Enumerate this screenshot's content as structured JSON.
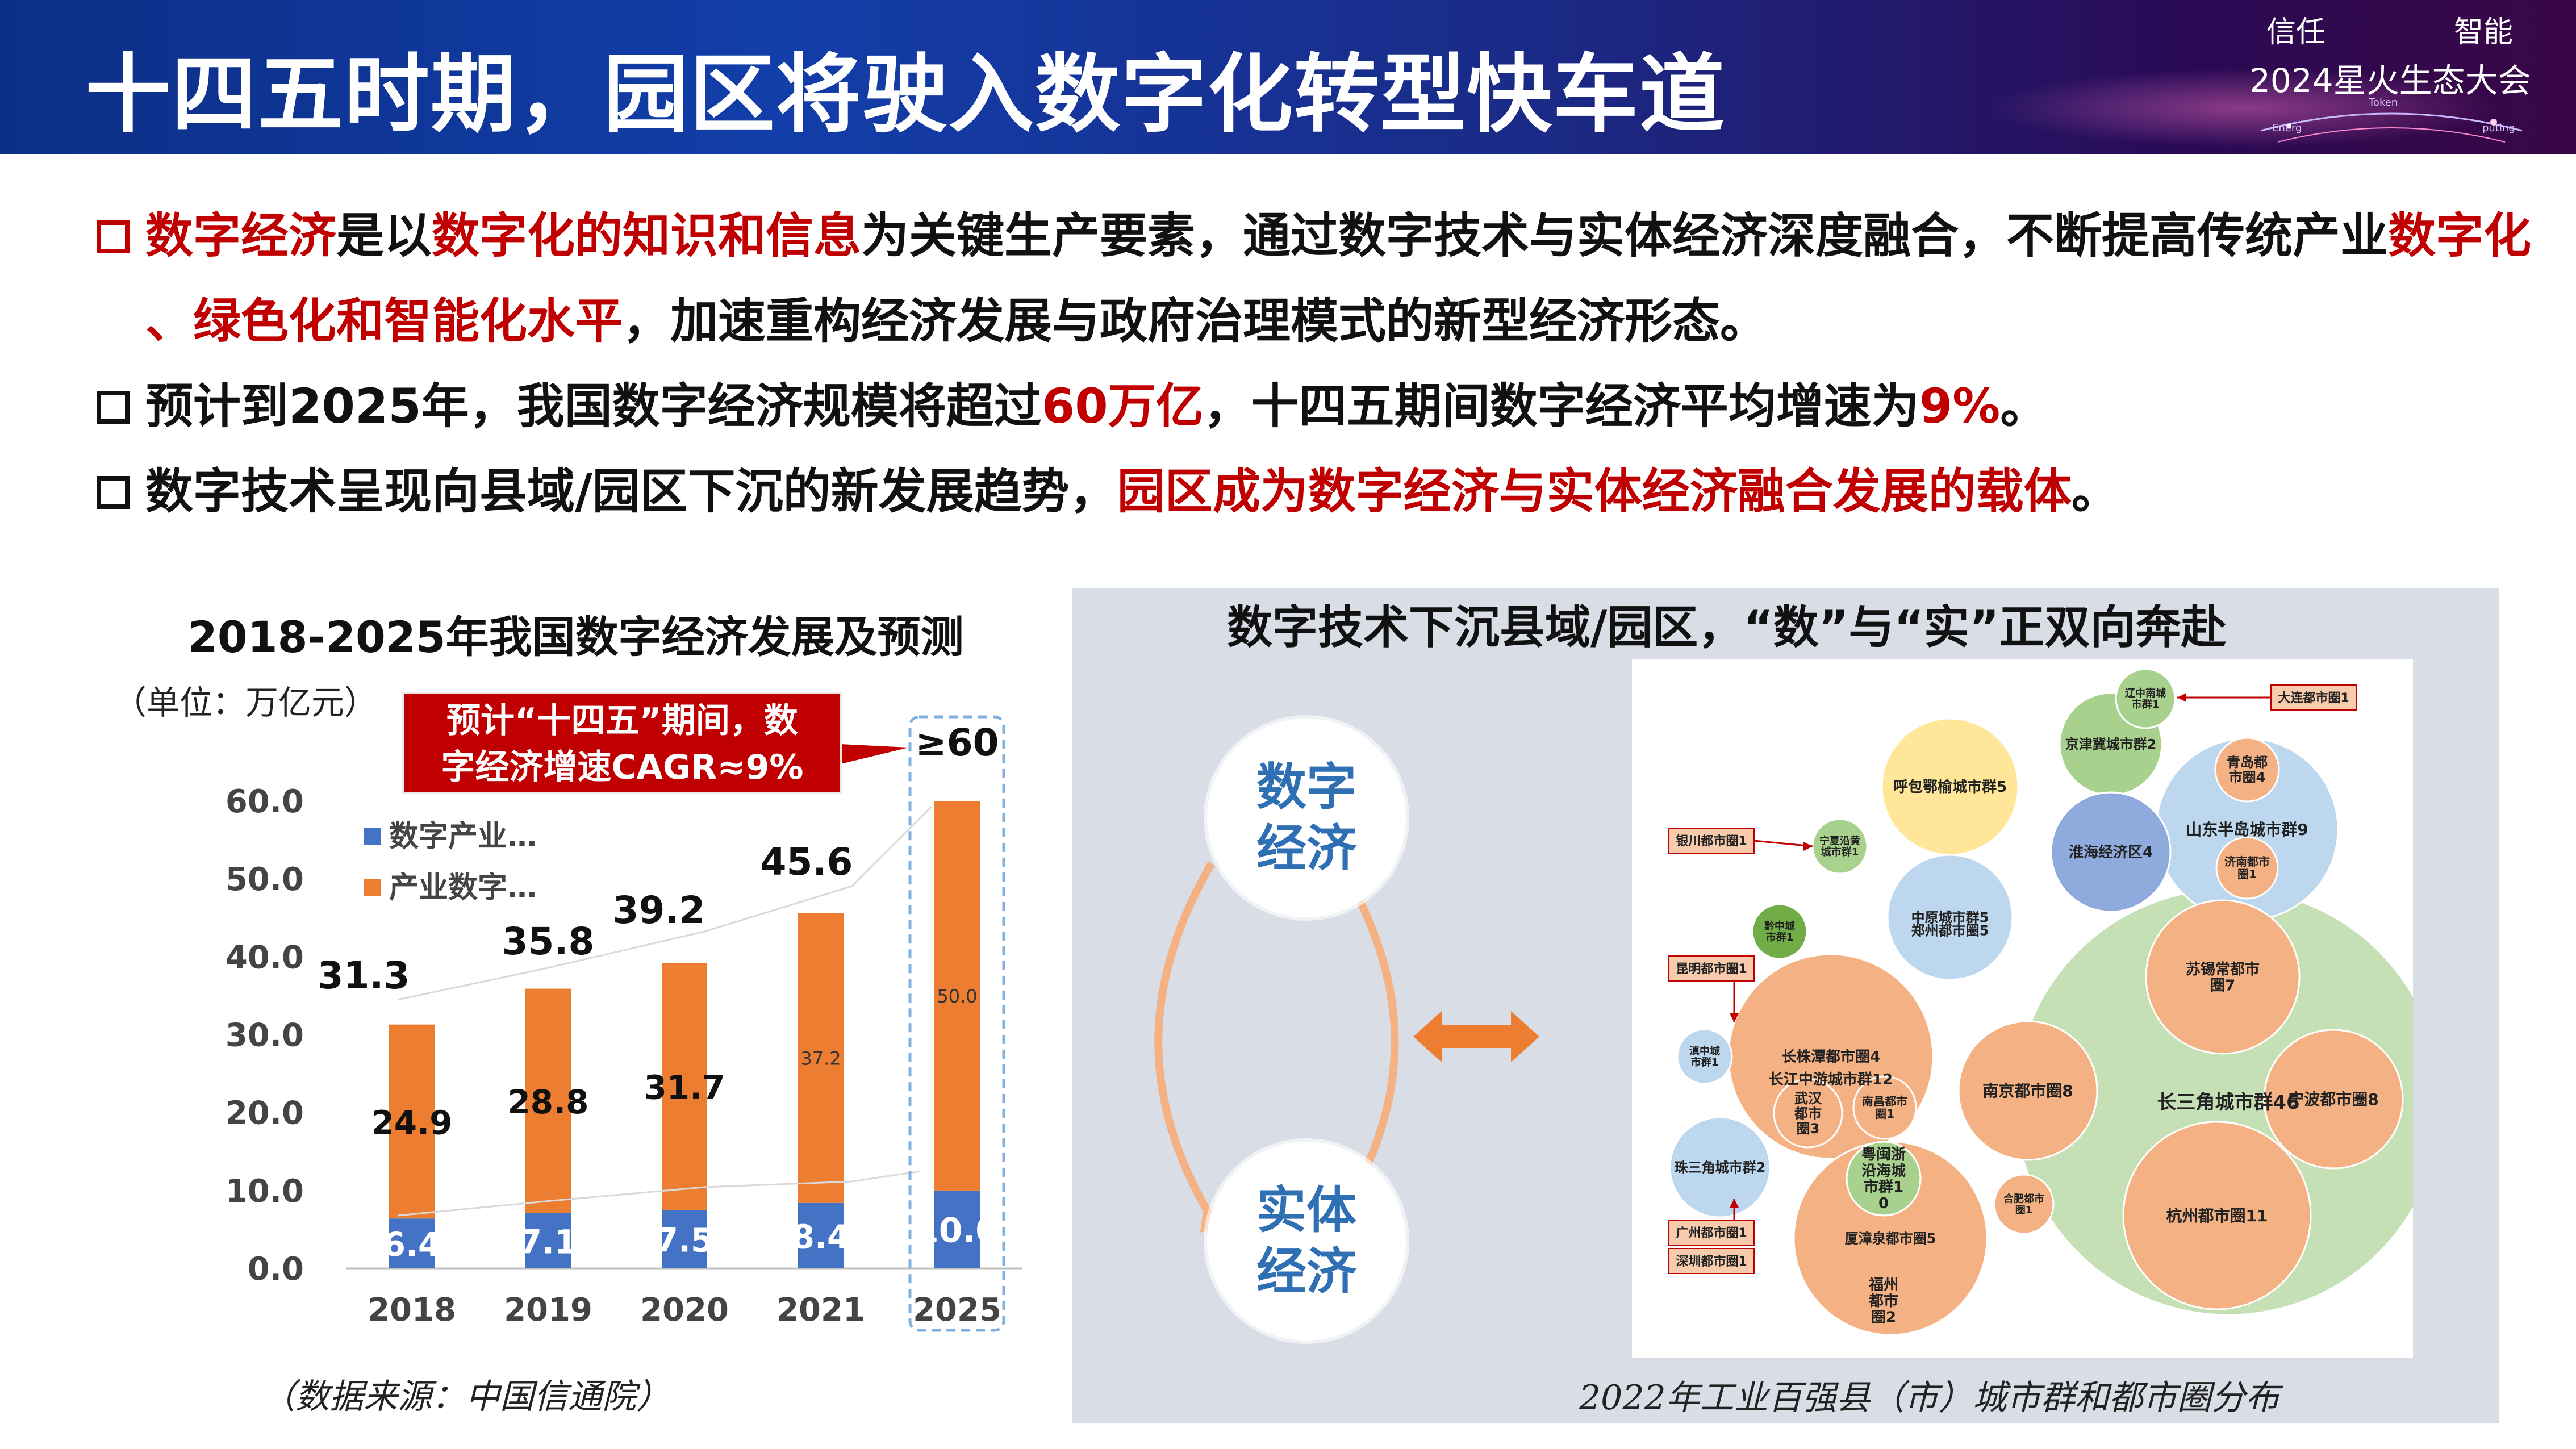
{
  "header": {
    "title": "十四五时期，园区将驶入数字化转型快车道",
    "event_word_left": "信任",
    "event_word_right": "智能",
    "event_name": "2024星火生态大会",
    "event_small_1": "Energ",
    "event_small_2": "Token",
    "event_small_3": "puting",
    "colors": {
      "banner_start": "#0c2f86",
      "banner_end": "#3a0745",
      "accent_red": "#c00000"
    }
  },
  "bullets": [
    {
      "segments": [
        {
          "text": "数字经济",
          "red": true
        },
        {
          "text": "是以",
          "red": false
        },
        {
          "text": "数字化的知识和信息",
          "red": true
        },
        {
          "text": "为关键生产要素，通过数字技术与实体经济深度融合，不断提高传统产业",
          "red": false
        },
        {
          "text": "数字化",
          "red": true
        }
      ],
      "cont": [
        {
          "text": "、绿色化和智能化水平",
          "red": true
        },
        {
          "text": "，加速重构经济发展与政府治理模式的新型经济形态。",
          "red": false
        }
      ]
    },
    {
      "segments": [
        {
          "text": "预计到2025年，我国数字经济规模将超过",
          "red": false
        },
        {
          "text": "60万亿",
          "red": true
        },
        {
          "text": "，十四五期间数字经济平均增速为",
          "red": false
        },
        {
          "text": "9%",
          "red": true
        },
        {
          "text": "。",
          "red": false
        }
      ]
    },
    {
      "segments": [
        {
          "text": "数字技术呈现向县域/园区下沉的新发展趋势，",
          "red": false
        },
        {
          "text": "园区成为数字经济与实体经济融合发展的载体",
          "red": true
        },
        {
          "text": "。",
          "red": false
        }
      ]
    }
  ],
  "left_chart": {
    "unit": "（单位：万亿元）",
    "callout_line1": "预计“十四五”期间，数",
    "callout_line2": "字经济增速CAGR≈9%",
    "source": "（数据来源：中国信通院）"
  },
  "chart_data": {
    "type": "bar",
    "stacked": true,
    "title": "2018-2025年我国数字经济发展及预测",
    "categories": [
      "2018",
      "2019",
      "2020",
      "2021",
      "2025"
    ],
    "series": [
      {
        "name": "数字产业…",
        "color": "#4472c4",
        "values": [
          6.4,
          7.1,
          7.5,
          8.4,
          10.0
        ],
        "labels": [
          "6.4",
          "7.1",
          "7.5",
          "8.4",
          "10.0"
        ]
      },
      {
        "name": "产业数字…",
        "color": "#ed7d31",
        "values": [
          24.9,
          28.8,
          31.7,
          37.2,
          50.0
        ],
        "labels": [
          "24.9",
          "28.8",
          "31.7",
          "37.2",
          "50.0"
        ]
      }
    ],
    "totals": [
      "31.3",
      "35.8",
      "39.2",
      "45.6",
      "≥60"
    ],
    "yticks": [
      "0.0",
      "10.0",
      "20.0",
      "30.0",
      "40.0",
      "50.0",
      "60.0"
    ],
    "ylim": [
      0,
      60
    ],
    "legend_position": "top-left",
    "highlight_category": "2025"
  },
  "right_panel": {
    "title": "数字技术下沉县域/园区，“数”与“实”正双向奔赴",
    "top_circle_line1": "数字",
    "top_circle_line2": "经济",
    "bottom_circle_line1": "实体",
    "bottom_circle_line2": "经济",
    "caption": "2022年工业百强县（市）城市群和都市圈分布"
  },
  "cluster_map": {
    "circles": [
      {
        "label": "辽中南城市群1",
        "color": "#a9d18e"
      },
      {
        "label": "京津冀城市群2",
        "color": "#a9d18e"
      },
      {
        "label": "呼包鄂榆城市群5",
        "color": "#ffe699"
      },
      {
        "label": "山东半岛城市群9",
        "color": "#bdd7ee"
      },
      {
        "label": "青岛都市圈4",
        "color": "#f4b183"
      },
      {
        "label": "济南都市圈1",
        "color": "#f4b183"
      },
      {
        "label": "宁夏沿黄城市群1",
        "color": "#a9d18e"
      },
      {
        "label": "淮海经济区4",
        "color": "#8faadc"
      },
      {
        "label": "中原城市群5",
        "color": "#bdd7ee"
      },
      {
        "label": "郑州都市圈5",
        "color": "#f4b183"
      },
      {
        "label": "黔中城市群1",
        "color": "#70ad47"
      },
      {
        "label": "长株潭都市圈4",
        "color": "#f4b183"
      },
      {
        "label": "长江中游城市群12",
        "color": "#a9d18e"
      },
      {
        "label": "武汉都市圈3",
        "color": "#f4b183"
      },
      {
        "label": "南昌都市圈1",
        "color": "#f4b183"
      },
      {
        "label": "滇中城市群1",
        "color": "#bdd7ee"
      },
      {
        "label": "珠三角城市群2",
        "color": "#bdd7ee"
      },
      {
        "label": "厦漳泉都市圈5",
        "color": "#f4b183"
      },
      {
        "label": "粤闽浙沿海城市群10",
        "color": "#a9d18e"
      },
      {
        "label": "福州都市圈2",
        "color": "#f4b183"
      },
      {
        "label": "长三角城市群46",
        "color": "#c5e0b4"
      },
      {
        "label": "苏锡常都市圈7",
        "color": "#f4b183"
      },
      {
        "label": "南京都市圈8",
        "color": "#f4b183"
      },
      {
        "label": "宁波都市圈8",
        "color": "#f4b183"
      },
      {
        "label": "合肥都市圈1",
        "color": "#f4b183"
      },
      {
        "label": "杭州都市圈11",
        "color": "#f4b183"
      }
    ],
    "tags": [
      {
        "label": "大连都市圈1"
      },
      {
        "label": "银川都市圈1"
      },
      {
        "label": "昆明都市圈1"
      },
      {
        "label": "广州都市圈1"
      },
      {
        "label": "深圳都市圈1"
      }
    ]
  }
}
